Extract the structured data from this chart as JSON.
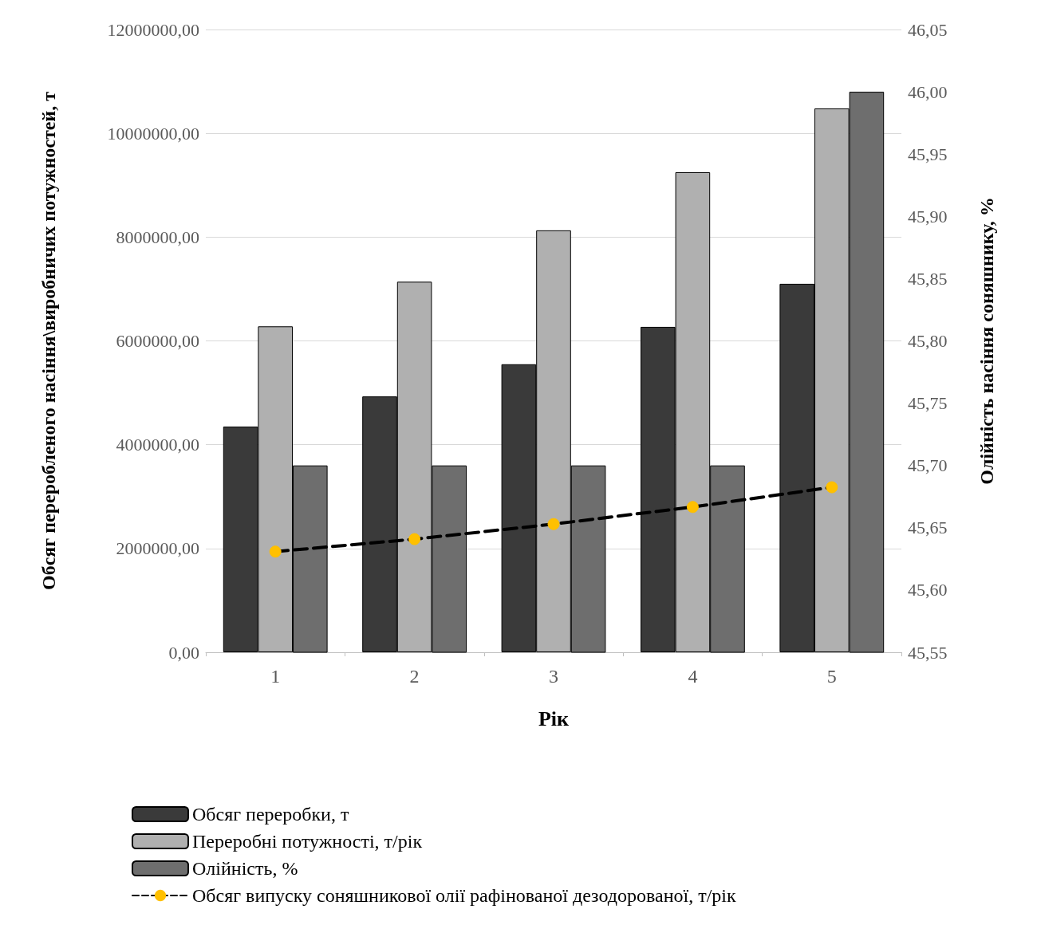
{
  "chart_data": {
    "type": "bar",
    "xlabel": "Рік",
    "ylabel": "Обсяг переробленого насіння\\виробничих потужностей, т",
    "y2label": "Олійність насіння соняшнику, %",
    "categories": [
      "1",
      "2",
      "3",
      "4",
      "5"
    ],
    "series": [
      {
        "name": "Обсяг переробки, т",
        "color": "#3a3a3a",
        "values": [
          4350000,
          4930000,
          5550000,
          6270000,
          7100000
        ]
      },
      {
        "name": "Переробні потужності, т/рік",
        "color": "#b0b0b0",
        "values": [
          6280000,
          7140000,
          8130000,
          9250000,
          10480000
        ]
      },
      {
        "name": "Олійність, %",
        "color": "#6e6e6e",
        "axis": "y2",
        "values": [
          45.7,
          45.7,
          45.7,
          45.7,
          46.0
        ]
      },
      {
        "name": "Обсяг випуску соняшникової олії рафінованої дезодорованої, т/рік",
        "type": "line",
        "color": "#000000",
        "line_style": "dashed",
        "marker": "circle",
        "values": [
          1940000,
          2180000,
          2470000,
          2800000,
          3180000
        ]
      }
    ],
    "ylim": [
      0,
      12000000
    ],
    "yticks": [
      {
        "value": 0,
        "label": "0,00"
      },
      {
        "value": 2000000,
        "label": "2000000,00"
      },
      {
        "value": 4000000,
        "label": "4000000,00"
      },
      {
        "value": 6000000,
        "label": "6000000,00"
      },
      {
        "value": 8000000,
        "label": "8000000,00"
      },
      {
        "value": 10000000,
        "label": "10000000,00"
      },
      {
        "value": 12000000,
        "label": "12000000,00"
      }
    ],
    "y2lim": [
      45.55,
      46.05
    ],
    "y2ticks": [
      {
        "value": 45.55,
        "label": "45,55"
      },
      {
        "value": 45.6,
        "label": "45,60"
      },
      {
        "value": 45.65,
        "label": "45,65"
      },
      {
        "value": 45.7,
        "label": "45,70"
      },
      {
        "value": 45.75,
        "label": "45,75"
      },
      {
        "value": 45.8,
        "label": "45,80"
      },
      {
        "value": 45.85,
        "label": "45,85"
      },
      {
        "value": 45.9,
        "label": "45,90"
      },
      {
        "value": 45.95,
        "label": "45,95"
      },
      {
        "value": 46.0,
        "label": "46,00"
      },
      {
        "value": 46.05,
        "label": "46,05"
      }
    ],
    "grid": "y",
    "legend": "bottom"
  }
}
